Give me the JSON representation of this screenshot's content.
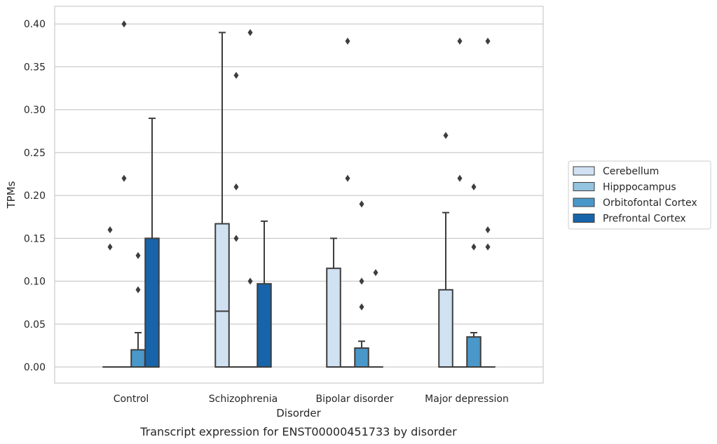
{
  "chart_data": {
    "type": "box",
    "title": "Transcript expression for ENST00000451733 by disorder",
    "xlabel": "Disorder",
    "ylabel": "TPMs",
    "ylim": [
      -0.02,
      0.42
    ],
    "yticks": [
      "0.00",
      "0.05",
      "0.10",
      "0.15",
      "0.20",
      "0.25",
      "0.30",
      "0.35",
      "0.40"
    ],
    "grid": "horizontal",
    "legend_position": "right",
    "categories": [
      "Control",
      "Schizophrenia",
      "Bipolar disorder",
      "Major depression"
    ],
    "series": [
      {
        "name": "Cerebellum",
        "color": "#d0e1f2",
        "boxes": [
          {
            "q1": 0,
            "median": 0,
            "q3": 0,
            "whislo": 0,
            "whishi": 0,
            "fliers": [
              0.14,
              0.16
            ]
          },
          {
            "q1": 0,
            "median": 0.065,
            "q3": 0.167,
            "whislo": 0,
            "whishi": 0.39,
            "fliers": []
          },
          {
            "q1": 0,
            "median": 0,
            "q3": 0.115,
            "whislo": 0,
            "whishi": 0.15,
            "fliers": []
          },
          {
            "q1": 0,
            "median": 0,
            "q3": 0.09,
            "whislo": 0,
            "whishi": 0.18,
            "fliers": [
              0.27
            ]
          }
        ]
      },
      {
        "name": "Hipppocampus",
        "color": "#94c4df",
        "boxes": [
          {
            "q1": 0,
            "median": 0,
            "q3": 0,
            "whislo": 0,
            "whishi": 0,
            "fliers": [
              0.22,
              0.4
            ]
          },
          {
            "q1": 0,
            "median": 0,
            "q3": 0,
            "whislo": 0,
            "whishi": 0,
            "fliers": [
              0.15,
              0.21,
              0.34
            ]
          },
          {
            "q1": 0,
            "median": 0,
            "q3": 0,
            "whislo": 0,
            "whishi": 0,
            "fliers": [
              0.22,
              0.38
            ]
          },
          {
            "q1": 0,
            "median": 0,
            "q3": 0,
            "whislo": 0,
            "whishi": 0,
            "fliers": [
              0.22,
              0.38
            ]
          }
        ]
      },
      {
        "name": "Orbitofontal Cortex",
        "color": "#4a98c9",
        "boxes": [
          {
            "q1": 0,
            "median": 0,
            "q3": 0.02,
            "whislo": 0,
            "whishi": 0.04,
            "fliers": [
              0.09,
              0.13
            ]
          },
          {
            "q1": 0,
            "median": 0,
            "q3": 0,
            "whislo": 0,
            "whishi": 0,
            "fliers": [
              0.1,
              0.39
            ]
          },
          {
            "q1": 0,
            "median": 0,
            "q3": 0.022,
            "whislo": 0,
            "whishi": 0.03,
            "fliers": [
              0.07,
              0.1,
              0.19
            ]
          },
          {
            "q1": 0,
            "median": 0,
            "q3": 0.035,
            "whislo": 0,
            "whishi": 0.04,
            "fliers": [
              0.14,
              0.21
            ]
          }
        ]
      },
      {
        "name": "Prefrontal Cortex",
        "color": "#1764ab",
        "boxes": [
          {
            "q1": 0,
            "median": 0,
            "q3": 0.15,
            "whislo": 0,
            "whishi": 0.29,
            "fliers": []
          },
          {
            "q1": 0,
            "median": 0,
            "q3": 0.097,
            "whislo": 0,
            "whishi": 0.17,
            "fliers": []
          },
          {
            "q1": 0,
            "median": 0,
            "q3": 0,
            "whislo": 0,
            "whishi": 0,
            "fliers": [
              0.11
            ]
          },
          {
            "q1": 0,
            "median": 0,
            "q3": 0,
            "whislo": 0,
            "whishi": 0,
            "fliers": [
              0.14,
              0.16,
              0.38
            ]
          }
        ]
      }
    ]
  }
}
